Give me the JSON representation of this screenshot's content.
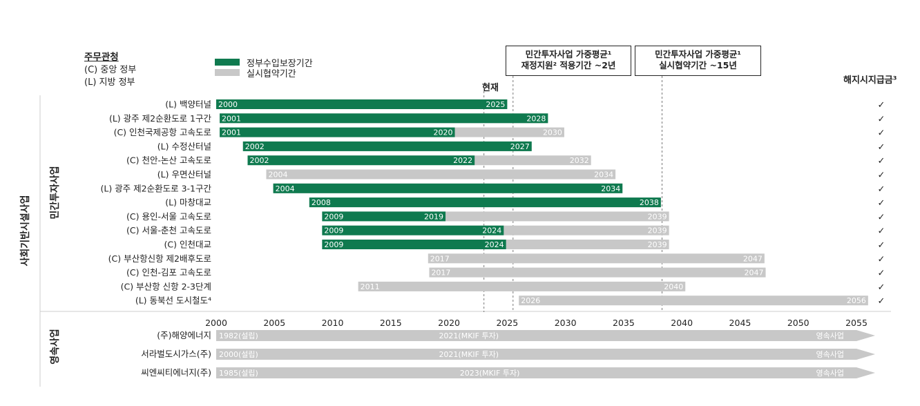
{
  "legend": {
    "authority_title": "주무관청",
    "central": "(C) 중앙 정부",
    "local": "(L) 지방 정부",
    "guarantee": "정부수입보장기간",
    "concession": "실시협약기간"
  },
  "headers": {
    "now": "현재",
    "box1_line1": "민간투자사업 가중평균¹",
    "box1_line2": "재정지원² 적용기간 ~2년",
    "box2_line1": "민간투자사업 가중평균¹",
    "box2_line2": "실시협약기간 ~15년",
    "termination": "해지시지급금³"
  },
  "groups": {
    "outer": "사회기반시설사업",
    "ppp": "민간투자사업",
    "perpetual": "영속사업"
  },
  "colors": {
    "green": "#0f7a4f",
    "gray": "#c8c8c8",
    "dark": "#222222"
  },
  "chart_data": {
    "type": "gantt",
    "x_range": [
      2000,
      2055
    ],
    "x_ticks": [
      "2000",
      "2005",
      "2010",
      "2015",
      "2020",
      "2025",
      "2030",
      "2035",
      "2040",
      "2045",
      "2050",
      "2055"
    ],
    "now_line": 2023,
    "reference_lines": [
      2025.5,
      2038.3
    ],
    "ppp_projects": [
      {
        "name": "(L) 백양터널",
        "start": 2000,
        "guarantee_end": 2025,
        "concession_end": 2025,
        "start_label": "2000",
        "mid_label": "",
        "end_label": "2025",
        "check": "✓"
      },
      {
        "name": "(L) 광주 제2순환도로 1구간",
        "start": 2000.3,
        "guarantee_end": 2028.5,
        "concession_end": 2028.5,
        "start_label": "2001",
        "mid_label": "",
        "end_label": "2028",
        "check": "✓"
      },
      {
        "name": "(C) 인천국제공항 고속도로",
        "start": 2000.3,
        "guarantee_end": 2020.5,
        "concession_end": 2029.9,
        "start_label": "2001",
        "mid_label": "2020",
        "end_label": "2030",
        "check": "✓"
      },
      {
        "name": "(L) 수정산터널",
        "start": 2002.3,
        "guarantee_end": 2027.1,
        "concession_end": 2027.1,
        "start_label": "2002",
        "mid_label": "",
        "end_label": "2027",
        "check": "✓"
      },
      {
        "name": "(C) 천안-논산 고속도로",
        "start": 2002.7,
        "guarantee_end": 2022.2,
        "concession_end": 2032.2,
        "start_label": "2002",
        "mid_label": "2022",
        "end_label": "2032",
        "check": "✓"
      },
      {
        "name": "(L) 우면산터널",
        "start": 2004.3,
        "guarantee_end": 2004.3,
        "concession_end": 2034.3,
        "start_label": "2004",
        "mid_label": "",
        "end_label": "2034",
        "check": "✓"
      },
      {
        "name": "(L) 광주 제2순환도로 3-1구간",
        "start": 2004.9,
        "guarantee_end": 2034.9,
        "concession_end": 2034.9,
        "start_label": "2004",
        "mid_label": "",
        "end_label": "2034",
        "check": "✓"
      },
      {
        "name": "(L) 마창대교",
        "start": 2008.0,
        "guarantee_end": 2038.2,
        "concession_end": 2038.2,
        "start_label": "2008",
        "mid_label": "",
        "end_label": "2038",
        "check": "✓"
      },
      {
        "name": "(C) 용인-서울 고속도로",
        "start": 2009.1,
        "guarantee_end": 2019.7,
        "concession_end": 2038.9,
        "start_label": "2009",
        "mid_label": "2019",
        "end_label": "2039",
        "check": "✓"
      },
      {
        "name": "(C) 서울-춘천 고속도로",
        "start": 2009.1,
        "guarantee_end": 2024.7,
        "concession_end": 2038.9,
        "start_label": "2009",
        "mid_label": "2024",
        "end_label": "2039",
        "check": "✓"
      },
      {
        "name": "(C) 인천대교",
        "start": 2009.1,
        "guarantee_end": 2024.9,
        "concession_end": 2038.9,
        "start_label": "2009",
        "mid_label": "2024",
        "end_label": "2039",
        "check": "✓"
      },
      {
        "name": "(C) 부산항신항 제2배후도로",
        "start": 2018.2,
        "guarantee_end": 2018.2,
        "concession_end": 2047.1,
        "start_label": "2017",
        "mid_label": "",
        "end_label": "2047",
        "check": "✓"
      },
      {
        "name": "(C) 인천-김포 고속도로",
        "start": 2018.3,
        "guarantee_end": 2018.3,
        "concession_end": 2047.2,
        "start_label": "2017",
        "mid_label": "",
        "end_label": "2047",
        "check": "✓"
      },
      {
        "name": "(C) 부산항 신항 2-3단계",
        "start": 2012.2,
        "guarantee_end": 2012.2,
        "concession_end": 2040.3,
        "start_label": "2011",
        "mid_label": "",
        "end_label": "2040",
        "check": "✓"
      },
      {
        "name": "(L) 동북선 도시철도⁴",
        "start": 2026.0,
        "guarantee_end": 2026.0,
        "concession_end": 2056.0,
        "start_label": "2026",
        "mid_label": "",
        "end_label": "2056",
        "check": "✓"
      }
    ],
    "perpetual_projects": [
      {
        "name": "(주)해양에너지",
        "start_label": "1982(설립)",
        "mid_label": "2021(MKIF 투자)",
        "mid_at": 2021.7,
        "end_label": "영속사업"
      },
      {
        "name": "서라벌도시가스(주)",
        "start_label": "2000(설립)",
        "mid_label": "2021(MKIF 투자)",
        "mid_at": 2021.7,
        "end_label": "영속사업"
      },
      {
        "name": "씨엔씨티에너지(주)",
        "start_label": "1985(설립)",
        "mid_label": "2023(MKIF 투자)",
        "mid_at": 2023.5,
        "end_label": "영속사업"
      }
    ]
  }
}
